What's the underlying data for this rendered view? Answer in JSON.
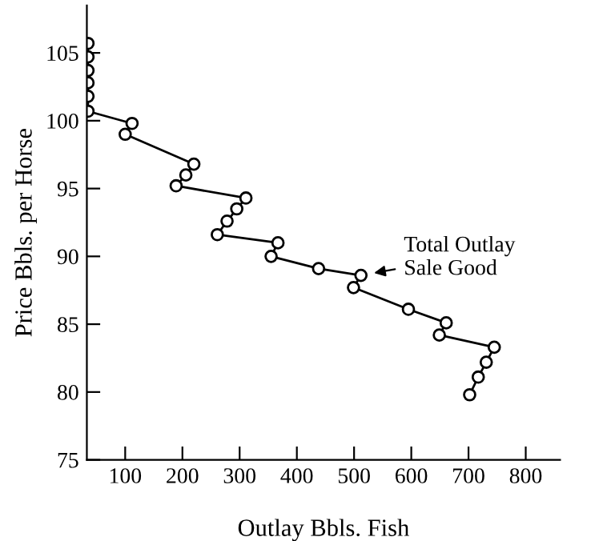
{
  "chart_data": {
    "type": "line",
    "xlabel": "Outlay Bbls. Fish",
    "ylabel": "Price Bbls. per Horse",
    "series": [
      {
        "color": "#000000",
        "x": [
          35,
          35,
          35,
          35,
          35,
          35,
          112,
          100,
          220,
          206,
          189,
          311,
          295,
          278,
          261,
          367,
          355,
          438,
          512,
          499,
          595,
          661,
          649,
          745,
          731,
          717,
          702
        ],
        "values": [
          105.7,
          104.7,
          103.7,
          102.8,
          101.8,
          100.7,
          99.8,
          99.0,
          96.8,
          96.0,
          95.2,
          94.3,
          93.5,
          92.6,
          91.6,
          91.0,
          90.0,
          89.1,
          88.6,
          87.7,
          86.1,
          85.1,
          84.2,
          83.3,
          82.2,
          81.1,
          79.8
        ]
      }
    ],
    "annotations": [
      {
        "text": "Total Outlay\nSale Good",
        "x": 512,
        "y": 88.6
      }
    ],
    "xlim": [
      33,
      860
    ],
    "ylim": [
      75,
      108.5
    ],
    "xticks": [
      100,
      200,
      300,
      400,
      500,
      600,
      700,
      800
    ],
    "yticks": [
      75,
      80,
      85,
      90,
      95,
      100,
      105
    ],
    "marker": "circle",
    "line_style": "solid",
    "grid": false,
    "legend": false
  }
}
